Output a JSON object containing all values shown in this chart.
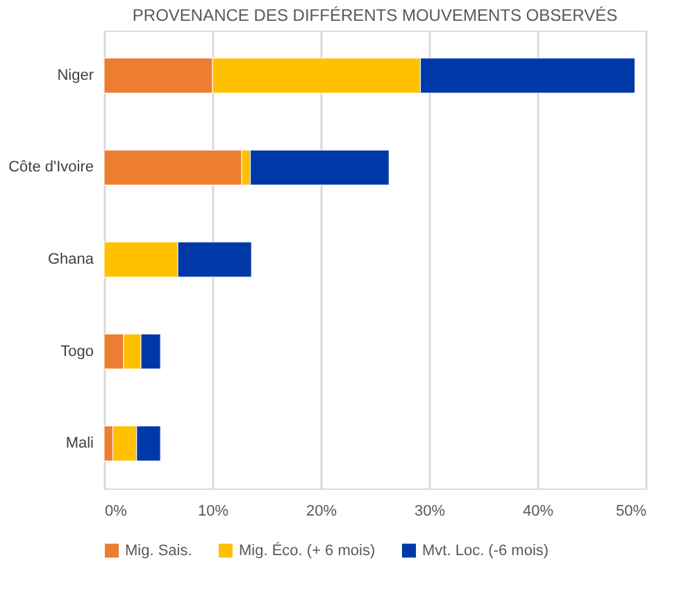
{
  "chart_data": {
    "type": "bar",
    "orientation": "horizontal",
    "stacked": true,
    "title": "PROVENANCE DES DIFFÉRENTS MOUVEMENTS OBSERVÉS",
    "categories": [
      "Niger",
      "Côte d'Ivoire",
      "Ghana",
      "Togo",
      "Mali"
    ],
    "series": [
      {
        "name": "Mig. Sais.",
        "color": "#ed7d31",
        "values": [
          10,
          12.7,
          0,
          1.8,
          0.8
        ]
      },
      {
        "name": "Mig. Éco. (+ 6 mois)",
        "color": "#ffc000",
        "values": [
          19.2,
          0.8,
          6.8,
          1.6,
          2.2
        ]
      },
      {
        "name": "Mvt. Loc. (-6 mois)",
        "color": "#0038a8",
        "values": [
          19.8,
          12.8,
          6.8,
          1.8,
          2.2
        ]
      }
    ],
    "xlim": [
      0,
      50
    ],
    "xticks": [
      {
        "value": 0,
        "label": "0%"
      },
      {
        "value": 10,
        "label": "10%"
      },
      {
        "value": 20,
        "label": "20%"
      },
      {
        "value": 30,
        "label": "30%"
      },
      {
        "value": 40,
        "label": "40%"
      },
      {
        "value": 50,
        "label": "50%"
      }
    ],
    "grid": "x",
    "legend": "bottom"
  }
}
